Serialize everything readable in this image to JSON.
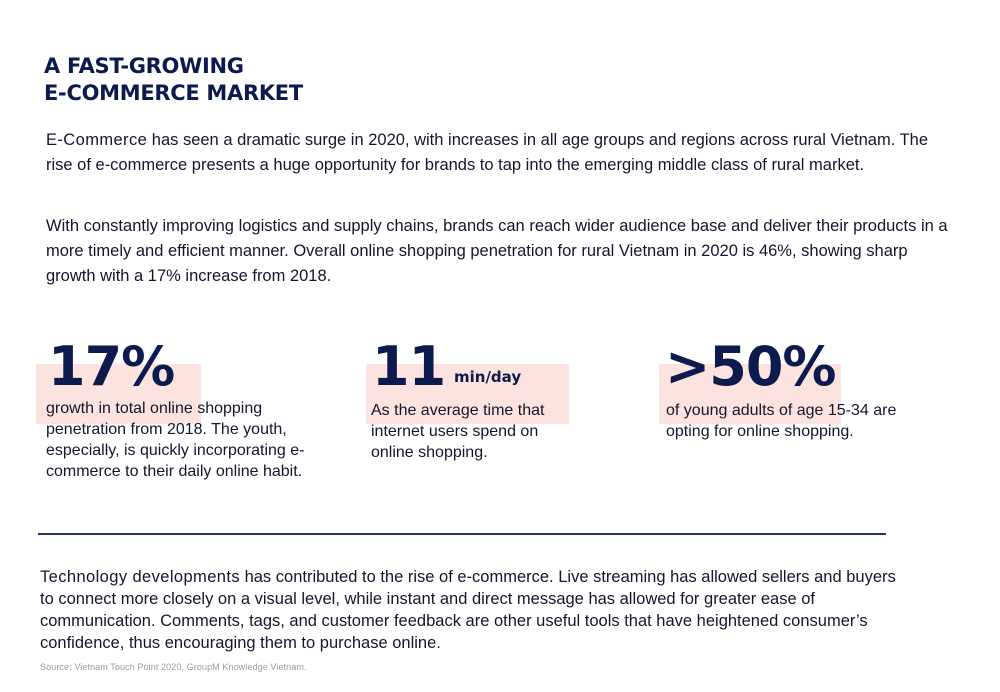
{
  "title": {
    "line1": "A FAST-GROWING",
    "line2": "E-COMMERCE MARKET"
  },
  "intro": {
    "p1_lead": "E-Commerce",
    "p1_rest": " has seen a dramatic surge in 2020, with increases in all age groups and regions across rural Vietnam. The rise of e-commerce presents a huge opportunity for brands to tap into the emerging middle class of rural market.",
    "p2": "With constantly improving logistics and supply chains, brands can reach wider audience base and deliver their products in a more timely and efficient manner. Overall online shopping penetration for rural Vietnam in 2020 is 46%, showing sharp growth with a 17% increase from 2018."
  },
  "stats": [
    {
      "value": "17%",
      "unit": "",
      "description": "growth in total online shopping penetration from 2018. The youth, especially, is quickly incorporating e-commerce to their daily online habit."
    },
    {
      "value": "11",
      "unit": "min/day",
      "description": "As the average time that internet users spend on online shopping."
    },
    {
      "value": ">50%",
      "unit": "",
      "description": "of young adults of age 15-34 are opting for online shopping."
    }
  ],
  "tech": {
    "lead": "Technology developments",
    "rest": " has contributed to the rise of e-commerce. Live streaming has allowed sellers and buyers to connect more closely on a visual level, while instant and direct message has allowed for greater ease of communication. Comments, tags, and customer feedback are other useful tools that have heightened consumer’s confidence, thus encouraging them to purchase online."
  },
  "source": "Source: Vietnam Touch Point 2020, GroupM Knowledge Vietnam.",
  "colors": {
    "heading": "#0c1a4d",
    "highlight": "#fde3df",
    "divider": "#2a3566"
  }
}
